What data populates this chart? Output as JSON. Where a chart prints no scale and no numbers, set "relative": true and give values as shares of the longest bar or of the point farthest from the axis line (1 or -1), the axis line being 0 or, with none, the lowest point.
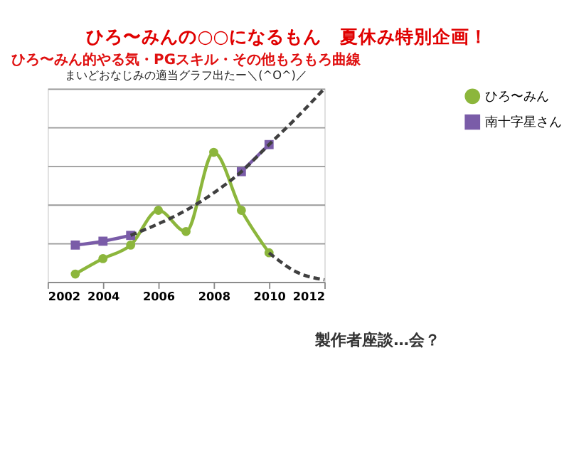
{
  "chart_data": {
    "type": "line",
    "title": "ひろ〜みん的やる気・PGスキル・その他もろもろ曲線",
    "subtitle": "まいどおなじみの適当グラフ出たー＼(^O^)／",
    "annotations": [
      "ひろ〜みんの○○になるもん　夏休み特別企画！",
      "製作者座談…会？"
    ],
    "relative": true,
    "xlim": [
      2002,
      2012
    ],
    "xticks": [
      2002,
      2004,
      2006,
      2008,
      2010,
      2012
    ],
    "grid": "y",
    "legend": "right",
    "series": [
      {
        "name": "ひろ〜みん",
        "color": "#8cb63c",
        "marker": "circle",
        "x": [
          2003,
          2004,
          2005,
          2006,
          2007,
          2008,
          2009,
          2010
        ],
        "values": [
          0.04,
          0.12,
          0.19,
          0.37,
          0.26,
          0.67,
          0.37,
          0.15
        ]
      },
      {
        "name": "南十字星さん",
        "color": "#7a5ca8",
        "marker": "square",
        "x": [
          2003,
          2004,
          2005,
          2006,
          2007,
          2008,
          2009,
          2010
        ],
        "values": [
          0.19,
          0.21,
          0.24,
          null,
          null,
          null,
          0.57,
          0.71
        ]
      },
      {
        "type": "line",
        "color": "#404040",
        "marker": "none",
        "line_style": "dashed",
        "x": [
          2005,
          2006,
          2007,
          2008,
          2009,
          2010,
          2011,
          2012
        ],
        "values": [
          0.24,
          0.3,
          0.37,
          0.46,
          0.57,
          0.71,
          0.85,
          1
        ]
      },
      {
        "type": "line",
        "color": "#404040",
        "marker": "none",
        "line_style": "dashed",
        "x": [
          2010,
          2011,
          2012
        ],
        "values": [
          0.15,
          0.05,
          0.01
        ]
      }
    ]
  }
}
